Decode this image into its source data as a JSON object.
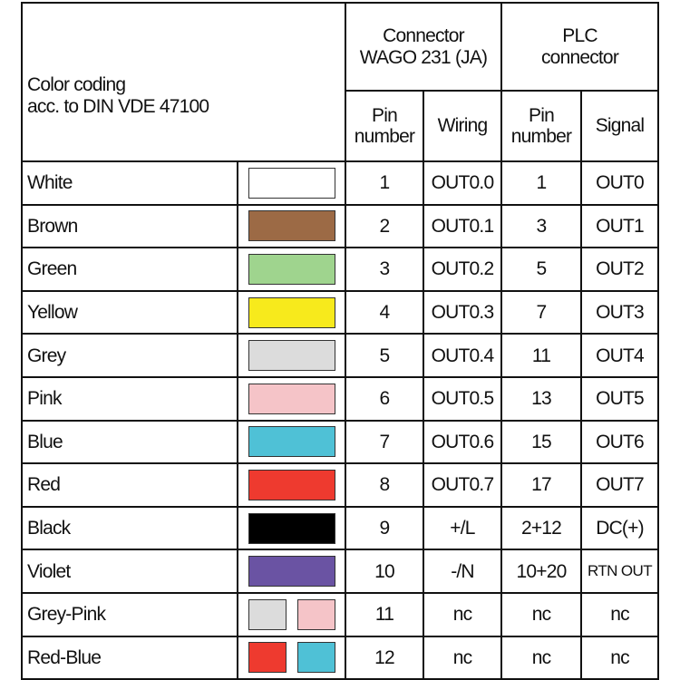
{
  "header": {
    "color_coding_line1": "Color coding",
    "color_coding_line2": "acc. to DIN VDE 47100",
    "connector_line1": "Connector",
    "connector_line2": "WAGO 231 (JA)",
    "plc_line1": "PLC",
    "plc_line2": "connector",
    "pin_number_line1": "Pin",
    "pin_number_line2": "number",
    "wiring": "Wiring",
    "plc_pin_line1": "Pin",
    "plc_pin_line2": "number",
    "signal": "Signal"
  },
  "rows": [
    {
      "color": "White",
      "swatches": [
        "#ffffff"
      ],
      "pin": "1",
      "wiring": "OUT0.0",
      "plc_pin": "1",
      "signal": "OUT0"
    },
    {
      "color": "Brown",
      "swatches": [
        "#9c6a45"
      ],
      "pin": "2",
      "wiring": "OUT0.1",
      "plc_pin": "3",
      "signal": "OUT1"
    },
    {
      "color": "Green",
      "swatches": [
        "#9fd48e"
      ],
      "pin": "3",
      "wiring": "OUT0.2",
      "plc_pin": "5",
      "signal": "OUT2"
    },
    {
      "color": "Yellow",
      "swatches": [
        "#f7ea1c"
      ],
      "pin": "4",
      "wiring": "OUT0.3",
      "plc_pin": "7",
      "signal": "OUT3"
    },
    {
      "color": "Grey",
      "swatches": [
        "#dcdcdc"
      ],
      "pin": "5",
      "wiring": "OUT0.4",
      "plc_pin": "11",
      "signal": "OUT4"
    },
    {
      "color": "Pink",
      "swatches": [
        "#f5c4c8"
      ],
      "pin": "6",
      "wiring": "OUT0.5",
      "plc_pin": "13",
      "signal": "OUT5"
    },
    {
      "color": "Blue",
      "swatches": [
        "#4fc1d6"
      ],
      "pin": "7",
      "wiring": "OUT0.6",
      "plc_pin": "15",
      "signal": "OUT6"
    },
    {
      "color": "Red",
      "swatches": [
        "#ee3a2f"
      ],
      "pin": "8",
      "wiring": "OUT0.7",
      "plc_pin": "17",
      "signal": "OUT7"
    },
    {
      "color": "Black",
      "swatches": [
        "#000000"
      ],
      "pin": "9",
      "wiring": "+/L",
      "plc_pin": "2+12",
      "signal": "DC(+)"
    },
    {
      "color": "Violet",
      "swatches": [
        "#6a53a3"
      ],
      "pin": "10",
      "wiring": "-/N",
      "plc_pin": "10+20",
      "signal": "RTN OUT"
    },
    {
      "color": "Grey-Pink",
      "swatches": [
        "#dcdcdc",
        "#f5c4c8"
      ],
      "pin": "11",
      "wiring": "nc",
      "plc_pin": "nc",
      "signal": "nc"
    },
    {
      "color": "Red-Blue",
      "swatches": [
        "#ee3a2f",
        "#4fc1d6"
      ],
      "pin": "12",
      "wiring": "nc",
      "plc_pin": "nc",
      "signal": "nc"
    }
  ]
}
